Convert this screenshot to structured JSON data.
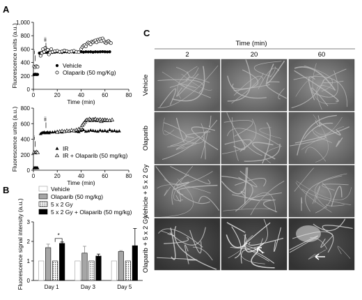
{
  "panels": {
    "A": "A",
    "B": "B",
    "C": "C"
  },
  "chart_data": [
    {
      "type": "scatter",
      "panel": "A-top",
      "ylabel": "Fluorescence units (a.u.)",
      "xlabel": "Time (min)",
      "ylim": [
        0,
        1000
      ],
      "xlim": [
        0,
        80
      ],
      "yticks": [
        "0",
        "200",
        "400",
        "600",
        "800",
        "1,000"
      ],
      "xticks": [
        "0",
        "20",
        "40",
        "60",
        "80"
      ],
      "annotations": [
        "i",
        "ii"
      ],
      "legend": [
        "Vehicle",
        "Olaparib (50 mg/Kg)"
      ],
      "series": [
        {
          "name": "Vehicle",
          "marker": "filled-circle",
          "x": [
            0.5,
            1,
            1.5,
            2,
            2.5,
            3,
            3.5,
            5,
            6,
            7,
            8,
            9,
            10,
            11,
            12,
            13,
            14,
            16,
            18,
            20,
            22,
            24,
            26,
            28,
            30,
            32,
            34,
            36,
            38,
            40,
            42,
            44,
            46,
            48,
            50,
            52,
            54,
            56,
            58,
            60,
            62,
            64
          ],
          "y": [
            220,
            220,
            225,
            222,
            220,
            223,
            221,
            540,
            545,
            550,
            548,
            552,
            555,
            550,
            560,
            555,
            545,
            550,
            555,
            560,
            555,
            550,
            560,
            558,
            555,
            560,
            555,
            560,
            558,
            560,
            555,
            560,
            558,
            560,
            555,
            560,
            558,
            560,
            562,
            560,
            558,
            560
          ]
        },
        {
          "name": "Olaparib (50 mg/Kg)",
          "marker": "open-circle",
          "x": [
            0.5,
            1.5,
            2.5,
            3.5,
            6,
            7,
            8,
            9,
            10,
            11,
            12,
            13,
            14,
            15,
            16,
            18,
            20,
            22,
            24,
            26,
            28,
            30,
            32,
            34,
            36,
            38,
            40,
            41,
            42,
            43,
            44,
            45,
            46,
            47,
            48,
            49,
            50,
            51,
            52,
            53,
            54,
            55,
            56,
            57,
            58,
            59,
            60,
            61,
            62,
            63,
            64,
            65
          ],
          "y": [
            340,
            330,
            345,
            335,
            500,
            540,
            600,
            560,
            620,
            580,
            590,
            520,
            550,
            600,
            560,
            570,
            575,
            560,
            565,
            580,
            570,
            560,
            565,
            575,
            560,
            555,
            600,
            630,
            650,
            660,
            640,
            680,
            700,
            690,
            670,
            710,
            700,
            720,
            730,
            700,
            740,
            720,
            750,
            720,
            760,
            730,
            700,
            690,
            710,
            720,
            700,
            690
          ]
        }
      ]
    },
    {
      "type": "scatter",
      "panel": "A-bottom",
      "ylabel": "Fluorescence units (a.u.)",
      "xlabel": "Time (min)",
      "ylim": [
        0,
        800
      ],
      "xlim": [
        0,
        80
      ],
      "yticks": [
        "0",
        "200",
        "400",
        "600",
        "800"
      ],
      "xticks": [
        "0",
        "20",
        "40",
        "60",
        "80"
      ],
      "annotations": [
        "i",
        "ii"
      ],
      "legend": [
        "IR",
        "IR + Olaparib (50 mg/kg)"
      ],
      "series": [
        {
          "name": "IR",
          "marker": "filled-triangle",
          "x": [
            0.5,
            1,
            1.5,
            2,
            2.5,
            3,
            3.5,
            6,
            7,
            8,
            9,
            10,
            11,
            12,
            13,
            14,
            16,
            18,
            20,
            22,
            24,
            26,
            28,
            30,
            32,
            34,
            36,
            38,
            40,
            42,
            44,
            46,
            48,
            50,
            52,
            54,
            56,
            58,
            60,
            62,
            64,
            66,
            68,
            70,
            72
          ],
          "y": [
            30,
            28,
            32,
            30,
            29,
            31,
            30,
            470,
            480,
            485,
            490,
            480,
            485,
            490,
            480,
            490,
            490,
            495,
            500,
            495,
            490,
            500,
            505,
            500,
            510,
            505,
            500,
            495,
            510,
            520,
            500,
            505,
            515,
            510,
            505,
            500,
            515,
            505,
            510,
            500,
            520,
            505,
            510,
            500,
            505
          ]
        },
        {
          "name": "IR + Olaparib (50 mg/kg)",
          "marker": "open-triangle",
          "x": [
            0.5,
            1.5,
            2.5,
            3.5,
            20,
            22,
            24,
            26,
            28,
            30,
            32,
            34,
            36,
            38,
            40,
            41,
            42,
            43,
            44,
            45,
            46,
            47,
            48,
            49,
            50,
            51,
            52,
            53,
            54,
            55,
            56,
            57,
            58,
            59,
            60,
            61,
            62,
            64,
            66
          ],
          "y": [
            230,
            225,
            235,
            228,
            490,
            500,
            505,
            500,
            510,
            505,
            515,
            510,
            520,
            530,
            550,
            580,
            600,
            620,
            640,
            650,
            640,
            660,
            650,
            640,
            655,
            650,
            660,
            640,
            650,
            640,
            655,
            630,
            650,
            640,
            650,
            640,
            645,
            640,
            650
          ]
        }
      ]
    },
    {
      "type": "bar",
      "panel": "B",
      "ylabel": "Fluorescence signal intensity (a.u.)",
      "ylim": [
        0,
        3
      ],
      "yticks": [
        "0",
        "1",
        "2",
        "3"
      ],
      "categories": [
        "Day 1",
        "Day 3",
        "Day 5"
      ],
      "significance": "*",
      "series": [
        {
          "name": "Vehicle",
          "fill": "white",
          "values": [
            1,
            1,
            1
          ],
          "errors": [
            0,
            0,
            0
          ]
        },
        {
          "name": "Olaparib (50 mg/kg)",
          "fill": "#a6a6a6",
          "values": [
            1.68,
            1.4,
            1.48
          ],
          "errors": [
            0.18,
            0.35,
            0.05
          ]
        },
        {
          "name": "5 x 2 Gy",
          "fill": "dotted",
          "values": [
            1,
            1,
            1
          ],
          "errors": [
            0,
            0,
            0
          ]
        },
        {
          "name": "5 x 2 Gy + Olaparib (50 mg/kg)",
          "fill": "#000000",
          "values": [
            1.9,
            1.25,
            1.78
          ],
          "errors": [
            0.07,
            0.1,
            0.88
          ]
        }
      ]
    }
  ],
  "panelC": {
    "header": "Time (min)",
    "columns": [
      "2",
      "20",
      "60"
    ],
    "rows": [
      "Vehicle",
      "Olaparib",
      "Vehicle + 5 x 2 Gy",
      "Olaparib + 5 x 2 Gy"
    ]
  }
}
